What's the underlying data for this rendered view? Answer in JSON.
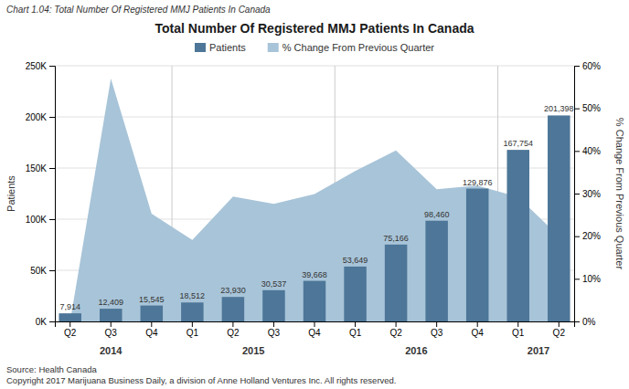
{
  "chart_data": {
    "type": "bar",
    "title": "Total Number Of Registered MMJ Patients In Canada",
    "subtitle": "Chart 1.04: Total Number Of Registered MMJ Patients In Canada",
    "categories": [
      "Q2",
      "Q3",
      "Q4",
      "Q1",
      "Q2",
      "Q3",
      "Q4",
      "Q1",
      "Q2",
      "Q3",
      "Q4",
      "Q1",
      "Q2"
    ],
    "years": [
      "2014",
      "2014",
      "2014",
      "2015",
      "2015",
      "2015",
      "2015",
      "2016",
      "2016",
      "2016",
      "2016",
      "2017",
      "2017"
    ],
    "series": [
      {
        "name": "Patients",
        "type": "bar",
        "color": "#4d7698",
        "values": [
          7914,
          12409,
          15545,
          18512,
          23930,
          30537,
          39668,
          53649,
          75166,
          98460,
          129876,
          167754,
          201398
        ],
        "value_labels": [
          "7,914",
          "12,409",
          "15,545",
          "18,512",
          "23,930",
          "30,537",
          "39,668",
          "53,649",
          "75,166",
          "98,460",
          "129,876",
          "167,754",
          "201,398"
        ]
      },
      {
        "name": "% Change From Previous Quarter",
        "type": "area",
        "color": "#a8c4d8",
        "axis": "y2",
        "values": [
          0.0,
          0.57,
          0.253,
          0.191,
          0.293,
          0.276,
          0.299,
          0.353,
          0.401,
          0.31,
          0.319,
          0.292,
          0.2
        ]
      }
    ],
    "ylabel": "Patients",
    "y2label": "% Change From Previous Quarter",
    "ylim": [
      0,
      250000
    ],
    "yticks": [
      {
        "value": 0,
        "label": "0K"
      },
      {
        "value": 50000,
        "label": "50K"
      },
      {
        "value": 100000,
        "label": "100K"
      },
      {
        "value": 150000,
        "label": "150K"
      },
      {
        "value": 200000,
        "label": "200K"
      },
      {
        "value": 250000,
        "label": "250K"
      }
    ],
    "y2lim": [
      0,
      0.6
    ],
    "y2ticks": [
      {
        "value": 0.0,
        "label": "0%"
      },
      {
        "value": 0.1,
        "label": "10%"
      },
      {
        "value": 0.2,
        "label": "20%"
      },
      {
        "value": 0.3,
        "label": "30%"
      },
      {
        "value": 0.4,
        "label": "40%"
      },
      {
        "value": 0.5,
        "label": "50%"
      },
      {
        "value": 0.6,
        "label": "60%"
      }
    ],
    "grid": true,
    "legend": "top",
    "data_labels": true,
    "source": [
      "Source: Health Canada",
      "Copyright 2017 Marijuana Business Daily, a division of Anne Holland Ventures Inc. All rights reserved."
    ]
  }
}
